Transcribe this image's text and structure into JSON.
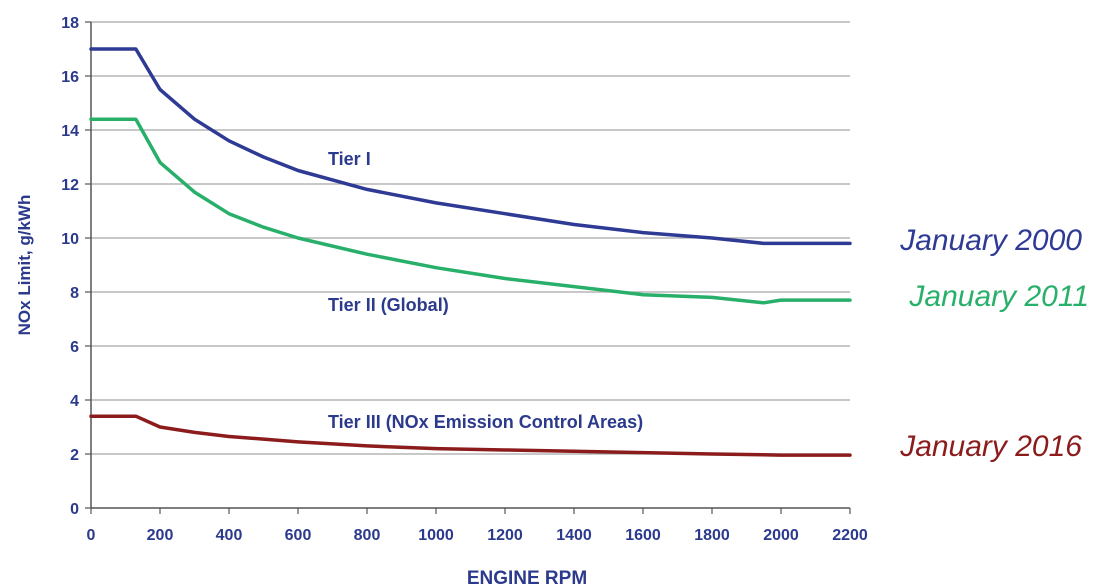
{
  "chart_data": {
    "type": "line",
    "title": "",
    "xlabel": "ENGINE RPM",
    "ylabel": "NOx Limit, g/kWh",
    "xlim": [
      0,
      2200
    ],
    "ylim": [
      0,
      18
    ],
    "xticks": [
      0,
      200,
      400,
      600,
      800,
      1000,
      1200,
      1400,
      1600,
      1800,
      2000,
      2200
    ],
    "yticks": [
      0,
      2,
      4,
      6,
      8,
      10,
      12,
      14,
      16,
      18
    ],
    "grid": "horizontal",
    "series": [
      {
        "name": "Tier I",
        "date": "January 2000",
        "color": "#2e3a94",
        "x": [
          0,
          130,
          200,
          300,
          400,
          500,
          600,
          800,
          1000,
          1200,
          1400,
          1600,
          1800,
          1950,
          2000,
          2200
        ],
        "y": [
          17.0,
          17.0,
          15.5,
          14.4,
          13.6,
          13.0,
          12.5,
          11.8,
          11.3,
          10.9,
          10.5,
          10.2,
          10.0,
          9.8,
          9.8,
          9.8
        ]
      },
      {
        "name": "Tier II (Global)",
        "date": "January 2011",
        "color": "#28b06a",
        "x": [
          0,
          130,
          200,
          300,
          400,
          500,
          600,
          800,
          1000,
          1200,
          1400,
          1600,
          1800,
          1950,
          2000,
          2200
        ],
        "y": [
          14.4,
          14.4,
          12.8,
          11.7,
          10.9,
          10.4,
          10.0,
          9.4,
          8.9,
          8.5,
          8.2,
          7.9,
          7.8,
          7.6,
          7.7,
          7.7
        ]
      },
      {
        "name": "Tier III (NOx Emission Control Areas)",
        "date": "January 2016",
        "color": "#8c1c1c",
        "x": [
          0,
          130,
          200,
          300,
          400,
          500,
          600,
          800,
          1000,
          1200,
          1400,
          1600,
          1800,
          2000,
          2200
        ],
        "y": [
          3.4,
          3.4,
          3.0,
          2.8,
          2.65,
          2.55,
          2.45,
          2.3,
          2.2,
          2.15,
          2.1,
          2.05,
          2.0,
          1.96,
          1.96
        ]
      }
    ]
  }
}
